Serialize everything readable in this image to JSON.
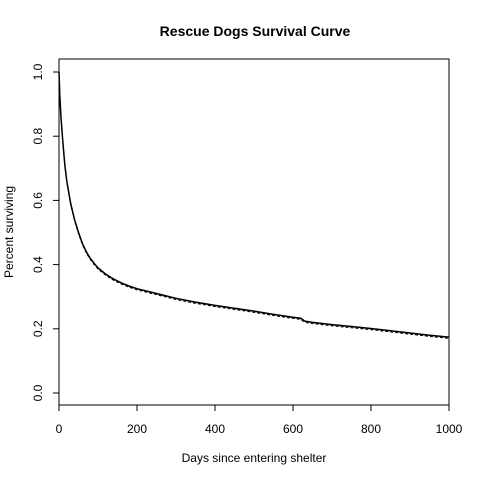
{
  "chart_data": {
    "type": "line",
    "title": "Rescue Dogs Survival Curve",
    "xlabel": "Days since entering shelter",
    "ylabel": "Percent surviving",
    "xlim": [
      0,
      1000
    ],
    "ylim": [
      0.0,
      1.0
    ],
    "x_ticks": [
      0,
      200,
      400,
      600,
      800,
      1000
    ],
    "y_ticks": [
      0.0,
      0.2,
      0.4,
      0.6,
      0.8,
      1.0
    ],
    "x_tick_labels": [
      "0",
      "200",
      "400",
      "600",
      "800",
      "1000"
    ],
    "y_tick_labels": [
      "0.0",
      "0.2",
      "0.4",
      "0.6",
      "0.8",
      "1.0"
    ],
    "grid": false,
    "series": [
      {
        "x": [
          0,
          2,
          5,
          10,
          15,
          20,
          30,
          40,
          50,
          60,
          70,
          80,
          90,
          100,
          120,
          140,
          160,
          180,
          200,
          250,
          300,
          350,
          400,
          450,
          500,
          550,
          600,
          620,
          630,
          650,
          700,
          750,
          800,
          850,
          900,
          950,
          1000
        ],
        "y": [
          1.0,
          0.93,
          0.86,
          0.78,
          0.71,
          0.66,
          0.59,
          0.54,
          0.5,
          0.466,
          0.44,
          0.42,
          0.404,
          0.39,
          0.37,
          0.355,
          0.343,
          0.333,
          0.325,
          0.31,
          0.295,
          0.283,
          0.273,
          0.264,
          0.255,
          0.245,
          0.236,
          0.233,
          0.224,
          0.22,
          0.213,
          0.207,
          0.201,
          0.194,
          0.187,
          0.18,
          0.174
        ]
      }
    ]
  }
}
